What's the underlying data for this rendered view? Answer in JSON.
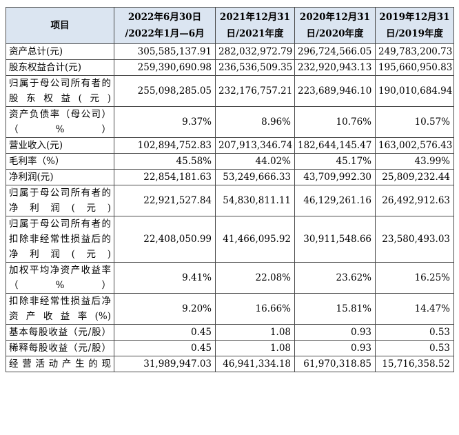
{
  "header": {
    "item": "项目",
    "col1_line1": "2022年6月30日",
    "col1_line2": "/2022年1月—6月",
    "col2_line1": "2021年12月31",
    "col2_line2": "日/2021年度",
    "col3_line1": "2020年12月31",
    "col3_line2": "日/2020年度",
    "col4_line1": "2019年12月31",
    "col4_line2": "日/2019年度"
  },
  "rows": [
    {
      "label": "资产总计(元)",
      "v1": "305,585,137.91",
      "v2": "282,032,972.79",
      "v3": "296,724,566.05",
      "v4": "249,783,200.73"
    },
    {
      "label": "股东权益合计(元)",
      "v1": "259,390,690.98",
      "v2": "236,536,509.35",
      "v3": "232,920,943.13",
      "v4": "195,660,950.83"
    },
    {
      "label": "归属于母公司所有者的股东权益(元)",
      "v1": "255,098,285.05",
      "v2": "232,176,757.21",
      "v3": "223,689,946.10",
      "v4": "190,010,684.94"
    },
    {
      "label": "资产负债率（母公司）（%）",
      "v1": "9.37%",
      "v2": "8.96%",
      "v3": "10.76%",
      "v4": "10.57%"
    },
    {
      "label": "营业收入(元)",
      "v1": "102,894,752.83",
      "v2": "207,913,346.74",
      "v3": "182,644,145.47",
      "v4": "163,002,576.43"
    },
    {
      "label": "毛利率（%）",
      "v1": "45.58%",
      "v2": "44.02%",
      "v3": "45.17%",
      "v4": "43.99%"
    },
    {
      "label": "净利润(元)",
      "v1": "22,854,181.63",
      "v2": "53,249,666.33",
      "v3": "43,709,992.30",
      "v4": "25,809,232.44"
    },
    {
      "label": "归属于母公司所有者的净利润(元)",
      "v1": "22,921,527.84",
      "v2": "54,830,811.11",
      "v3": "46,129,261.16",
      "v4": "26,492,912.63"
    },
    {
      "label": "归属于母公司所有者的扣除非经常性损益后的净利润(元)",
      "v1": "22,408,050.99",
      "v2": "41,466,095.92",
      "v3": "30,911,548.66",
      "v4": "23,580,493.03"
    },
    {
      "label": "加权平均净资产收益率（%）",
      "v1": "9.41%",
      "v2": "22.08%",
      "v3": "23.62%",
      "v4": "16.25%"
    },
    {
      "label": "扣除非经常性损益后净资产收益率(%)",
      "v1": "9.20%",
      "v2": "16.66%",
      "v3": "15.81%",
      "v4": "14.47%"
    },
    {
      "label": "基本每股收益（元/股）",
      "v1": "0.45",
      "v2": "1.08",
      "v3": "0.93",
      "v4": "0.53"
    },
    {
      "label": "稀释每股收益（元/股）",
      "v1": "0.45",
      "v2": "1.08",
      "v3": "0.93",
      "v4": "0.53"
    },
    {
      "label": "经营活动产生的现",
      "v1": "31,989,947.03",
      "v2": "46,941,334.18",
      "v3": "61,970,318.85",
      "v4": "15,716,358.52"
    }
  ]
}
